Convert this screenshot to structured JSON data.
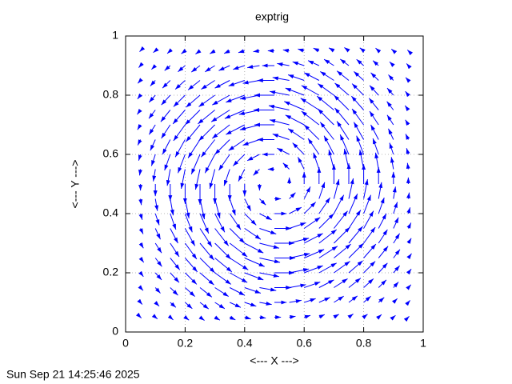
{
  "chart_data": {
    "type": "vector",
    "title": "exptrig",
    "xlabel": "<--- X --->",
    "ylabel": "<--- Y --->",
    "timestamp": "Sun Sep 21 14:25:46 2025",
    "xlim": [
      0,
      1
    ],
    "ylim": [
      0,
      1
    ],
    "xticks": [
      0,
      0.2,
      0.4,
      0.6,
      0.8,
      1
    ],
    "yticks": [
      0,
      0.2,
      0.4,
      0.6,
      0.8,
      1
    ],
    "grid": true,
    "color": "#0000ff",
    "x": [
      0.05,
      0.1,
      0.15,
      0.2,
      0.25,
      0.3,
      0.35,
      0.4,
      0.45,
      0.5,
      0.55,
      0.6,
      0.65,
      0.7,
      0.75,
      0.8,
      0.85,
      0.9,
      0.95
    ],
    "y": [
      0.05,
      0.1,
      0.15,
      0.2,
      0.25,
      0.3,
      0.35,
      0.4,
      0.45,
      0.5,
      0.55,
      0.6,
      0.65,
      0.7,
      0.75,
      0.8,
      0.85,
      0.9,
      0.95
    ],
    "u": [
      [
        0.003,
        0.007,
        0.01,
        0.013,
        0.015,
        0.017,
        0.019,
        0.021,
        0.021,
        0.022,
        0.021,
        0.021,
        0.019,
        0.017,
        0.015,
        0.013,
        0.01,
        0.007,
        0.003
      ],
      [
        0.006,
        0.013,
        0.019,
        0.024,
        0.029,
        0.033,
        0.037,
        0.039,
        0.041,
        0.041,
        0.041,
        0.039,
        0.037,
        0.033,
        0.029,
        0.024,
        0.019,
        0.013,
        0.006
      ],
      [
        0.009,
        0.017,
        0.026,
        0.033,
        0.04,
        0.046,
        0.05,
        0.054,
        0.056,
        0.057,
        0.056,
        0.054,
        0.05,
        0.046,
        0.04,
        0.033,
        0.026,
        0.017,
        0.009
      ],
      [
        0.01,
        0.021,
        0.03,
        0.039,
        0.047,
        0.054,
        0.059,
        0.063,
        0.066,
        0.067,
        0.066,
        0.063,
        0.059,
        0.054,
        0.047,
        0.039,
        0.03,
        0.021,
        0.01
      ],
      [
        0.011,
        0.022,
        0.032,
        0.041,
        0.05,
        0.057,
        0.062,
        0.067,
        0.069,
        0.07,
        0.069,
        0.067,
        0.062,
        0.057,
        0.05,
        0.041,
        0.032,
        0.022,
        0.011
      ],
      [
        0.01,
        0.021,
        0.03,
        0.039,
        0.047,
        0.054,
        0.059,
        0.063,
        0.066,
        0.067,
        0.066,
        0.063,
        0.059,
        0.054,
        0.047,
        0.039,
        0.03,
        0.021,
        0.01
      ],
      [
        0.009,
        0.017,
        0.026,
        0.033,
        0.04,
        0.046,
        0.05,
        0.054,
        0.056,
        0.057,
        0.056,
        0.054,
        0.05,
        0.046,
        0.04,
        0.033,
        0.026,
        0.017,
        0.009
      ],
      [
        0.006,
        0.013,
        0.019,
        0.024,
        0.029,
        0.033,
        0.037,
        0.039,
        0.041,
        0.041,
        0.041,
        0.039,
        0.037,
        0.033,
        0.029,
        0.024,
        0.019,
        0.013,
        0.006
      ],
      [
        0.003,
        0.007,
        0.01,
        0.013,
        0.015,
        0.017,
        0.019,
        0.021,
        0.021,
        0.022,
        0.021,
        0.021,
        0.019,
        0.017,
        0.015,
        0.013,
        0.01,
        0.007,
        0.003
      ],
      [
        0,
        0,
        0,
        0,
        0,
        0,
        0,
        0,
        0,
        0,
        0,
        0,
        0,
        0,
        0,
        0,
        0,
        0,
        0
      ],
      [
        -0.003,
        -0.007,
        -0.01,
        -0.013,
        -0.015,
        -0.017,
        -0.019,
        -0.021,
        -0.021,
        -0.022,
        -0.021,
        -0.021,
        -0.019,
        -0.017,
        -0.015,
        -0.013,
        -0.01,
        -0.007,
        -0.003
      ],
      [
        -0.006,
        -0.013,
        -0.019,
        -0.024,
        -0.029,
        -0.033,
        -0.037,
        -0.039,
        -0.041,
        -0.041,
        -0.041,
        -0.039,
        -0.037,
        -0.033,
        -0.029,
        -0.024,
        -0.019,
        -0.013,
        -0.006
      ],
      [
        -0.009,
        -0.017,
        -0.026,
        -0.033,
        -0.04,
        -0.046,
        -0.05,
        -0.054,
        -0.056,
        -0.057,
        -0.056,
        -0.054,
        -0.05,
        -0.046,
        -0.04,
        -0.033,
        -0.026,
        -0.017,
        -0.009
      ],
      [
        -0.01,
        -0.021,
        -0.03,
        -0.039,
        -0.047,
        -0.054,
        -0.059,
        -0.063,
        -0.066,
        -0.067,
        -0.066,
        -0.063,
        -0.059,
        -0.054,
        -0.047,
        -0.039,
        -0.03,
        -0.021,
        -0.01
      ],
      [
        -0.011,
        -0.022,
        -0.032,
        -0.041,
        -0.05,
        -0.057,
        -0.062,
        -0.067,
        -0.069,
        -0.07,
        -0.069,
        -0.067,
        -0.062,
        -0.057,
        -0.05,
        -0.041,
        -0.032,
        -0.022,
        -0.011
      ],
      [
        -0.01,
        -0.021,
        -0.03,
        -0.039,
        -0.047,
        -0.054,
        -0.059,
        -0.063,
        -0.066,
        -0.067,
        -0.066,
        -0.063,
        -0.059,
        -0.054,
        -0.047,
        -0.039,
        -0.03,
        -0.021,
        -0.01
      ],
      [
        -0.009,
        -0.017,
        -0.026,
        -0.033,
        -0.04,
        -0.046,
        -0.05,
        -0.054,
        -0.056,
        -0.057,
        -0.056,
        -0.054,
        -0.05,
        -0.046,
        -0.04,
        -0.033,
        -0.026,
        -0.017,
        -0.009
      ],
      [
        -0.006,
        -0.013,
        -0.019,
        -0.024,
        -0.029,
        -0.033,
        -0.037,
        -0.039,
        -0.041,
        -0.041,
        -0.041,
        -0.039,
        -0.037,
        -0.033,
        -0.029,
        -0.024,
        -0.019,
        -0.013,
        -0.006
      ],
      [
        -0.003,
        -0.007,
        -0.01,
        -0.013,
        -0.015,
        -0.017,
        -0.019,
        -0.021,
        -0.021,
        -0.022,
        -0.021,
        -0.021,
        -0.019,
        -0.017,
        -0.015,
        -0.013,
        -0.01,
        -0.007,
        -0.003
      ]
    ],
    "v": [
      [
        -0.003,
        -0.006,
        -0.009,
        -0.01,
        -0.011,
        -0.01,
        -0.009,
        -0.006,
        -0.003,
        0,
        0.003,
        0.006,
        0.009,
        0.01,
        0.011,
        0.01,
        0.009,
        0.006,
        0.003
      ],
      [
        -0.007,
        -0.013,
        -0.017,
        -0.021,
        -0.022,
        -0.021,
        -0.017,
        -0.013,
        -0.007,
        0,
        0.007,
        0.013,
        0.017,
        0.021,
        0.022,
        0.021,
        0.017,
        0.013,
        0.007
      ],
      [
        -0.01,
        -0.019,
        -0.026,
        -0.03,
        -0.032,
        -0.03,
        -0.026,
        -0.019,
        -0.01,
        0,
        0.01,
        0.019,
        0.026,
        0.03,
        0.032,
        0.03,
        0.026,
        0.019,
        0.01
      ],
      [
        -0.013,
        -0.024,
        -0.033,
        -0.039,
        -0.041,
        -0.039,
        -0.033,
        -0.024,
        -0.013,
        0,
        0.013,
        0.024,
        0.033,
        0.039,
        0.041,
        0.039,
        0.033,
        0.024,
        0.013
      ],
      [
        -0.015,
        -0.029,
        -0.04,
        -0.047,
        -0.05,
        -0.047,
        -0.04,
        -0.029,
        -0.015,
        0,
        0.015,
        0.029,
        0.04,
        0.047,
        0.05,
        0.047,
        0.04,
        0.029,
        0.015
      ],
      [
        -0.017,
        -0.033,
        -0.046,
        -0.054,
        -0.057,
        -0.054,
        -0.046,
        -0.033,
        -0.017,
        0,
        0.017,
        0.033,
        0.046,
        0.054,
        0.057,
        0.054,
        0.046,
        0.033,
        0.017
      ],
      [
        -0.019,
        -0.037,
        -0.05,
        -0.059,
        -0.062,
        -0.059,
        -0.05,
        -0.037,
        -0.019,
        0,
        0.019,
        0.037,
        0.05,
        0.059,
        0.062,
        0.059,
        0.05,
        0.037,
        0.019
      ],
      [
        -0.021,
        -0.039,
        -0.054,
        -0.063,
        -0.067,
        -0.063,
        -0.054,
        -0.039,
        -0.021,
        0,
        0.021,
        0.039,
        0.054,
        0.063,
        0.067,
        0.063,
        0.054,
        0.039,
        0.021
      ],
      [
        -0.021,
        -0.041,
        -0.056,
        -0.066,
        -0.069,
        -0.066,
        -0.056,
        -0.041,
        -0.021,
        0,
        0.021,
        0.041,
        0.056,
        0.066,
        0.069,
        0.066,
        0.056,
        0.041,
        0.021
      ],
      [
        -0.022,
        -0.041,
        -0.057,
        -0.067,
        -0.07,
        -0.067,
        -0.057,
        -0.041,
        -0.022,
        0,
        0.022,
        0.041,
        0.057,
        0.067,
        0.07,
        0.067,
        0.057,
        0.041,
        0.022
      ],
      [
        -0.021,
        -0.041,
        -0.056,
        -0.066,
        -0.069,
        -0.066,
        -0.056,
        -0.041,
        -0.021,
        0,
        0.021,
        0.041,
        0.056,
        0.066,
        0.069,
        0.066,
        0.056,
        0.041,
        0.021
      ],
      [
        -0.021,
        -0.039,
        -0.054,
        -0.063,
        -0.067,
        -0.063,
        -0.054,
        -0.039,
        -0.021,
        0,
        0.021,
        0.039,
        0.054,
        0.063,
        0.067,
        0.063,
        0.054,
        0.039,
        0.021
      ],
      [
        -0.019,
        -0.037,
        -0.05,
        -0.059,
        -0.062,
        -0.059,
        -0.05,
        -0.037,
        -0.019,
        0,
        0.019,
        0.037,
        0.05,
        0.059,
        0.062,
        0.059,
        0.05,
        0.037,
        0.019
      ],
      [
        -0.017,
        -0.033,
        -0.046,
        -0.054,
        -0.057,
        -0.054,
        -0.046,
        -0.033,
        -0.017,
        0,
        0.017,
        0.033,
        0.046,
        0.054,
        0.057,
        0.054,
        0.046,
        0.033,
        0.017
      ],
      [
        -0.015,
        -0.029,
        -0.04,
        -0.047,
        -0.05,
        -0.047,
        -0.04,
        -0.029,
        -0.015,
        0,
        0.015,
        0.029,
        0.04,
        0.047,
        0.05,
        0.047,
        0.04,
        0.029,
        0.015
      ],
      [
        -0.013,
        -0.024,
        -0.033,
        -0.039,
        -0.041,
        -0.039,
        -0.033,
        -0.024,
        -0.013,
        0,
        0.013,
        0.024,
        0.033,
        0.039,
        0.041,
        0.039,
        0.033,
        0.024,
        0.013
      ],
      [
        -0.01,
        -0.019,
        -0.026,
        -0.03,
        -0.032,
        -0.03,
        -0.026,
        -0.019,
        -0.01,
        0,
        0.01,
        0.019,
        0.026,
        0.03,
        0.032,
        0.03,
        0.026,
        0.019,
        0.01
      ],
      [
        -0.007,
        -0.013,
        -0.017,
        -0.021,
        -0.022,
        -0.021,
        -0.017,
        -0.013,
        -0.007,
        0,
        0.007,
        0.013,
        0.017,
        0.021,
        0.022,
        0.021,
        0.017,
        0.013,
        0.007
      ],
      [
        -0.003,
        -0.006,
        -0.009,
        -0.01,
        -0.011,
        -0.01,
        -0.009,
        -0.006,
        -0.003,
        0,
        0.003,
        0.006,
        0.009,
        0.01,
        0.011,
        0.01,
        0.009,
        0.006,
        0.003
      ]
    ]
  }
}
